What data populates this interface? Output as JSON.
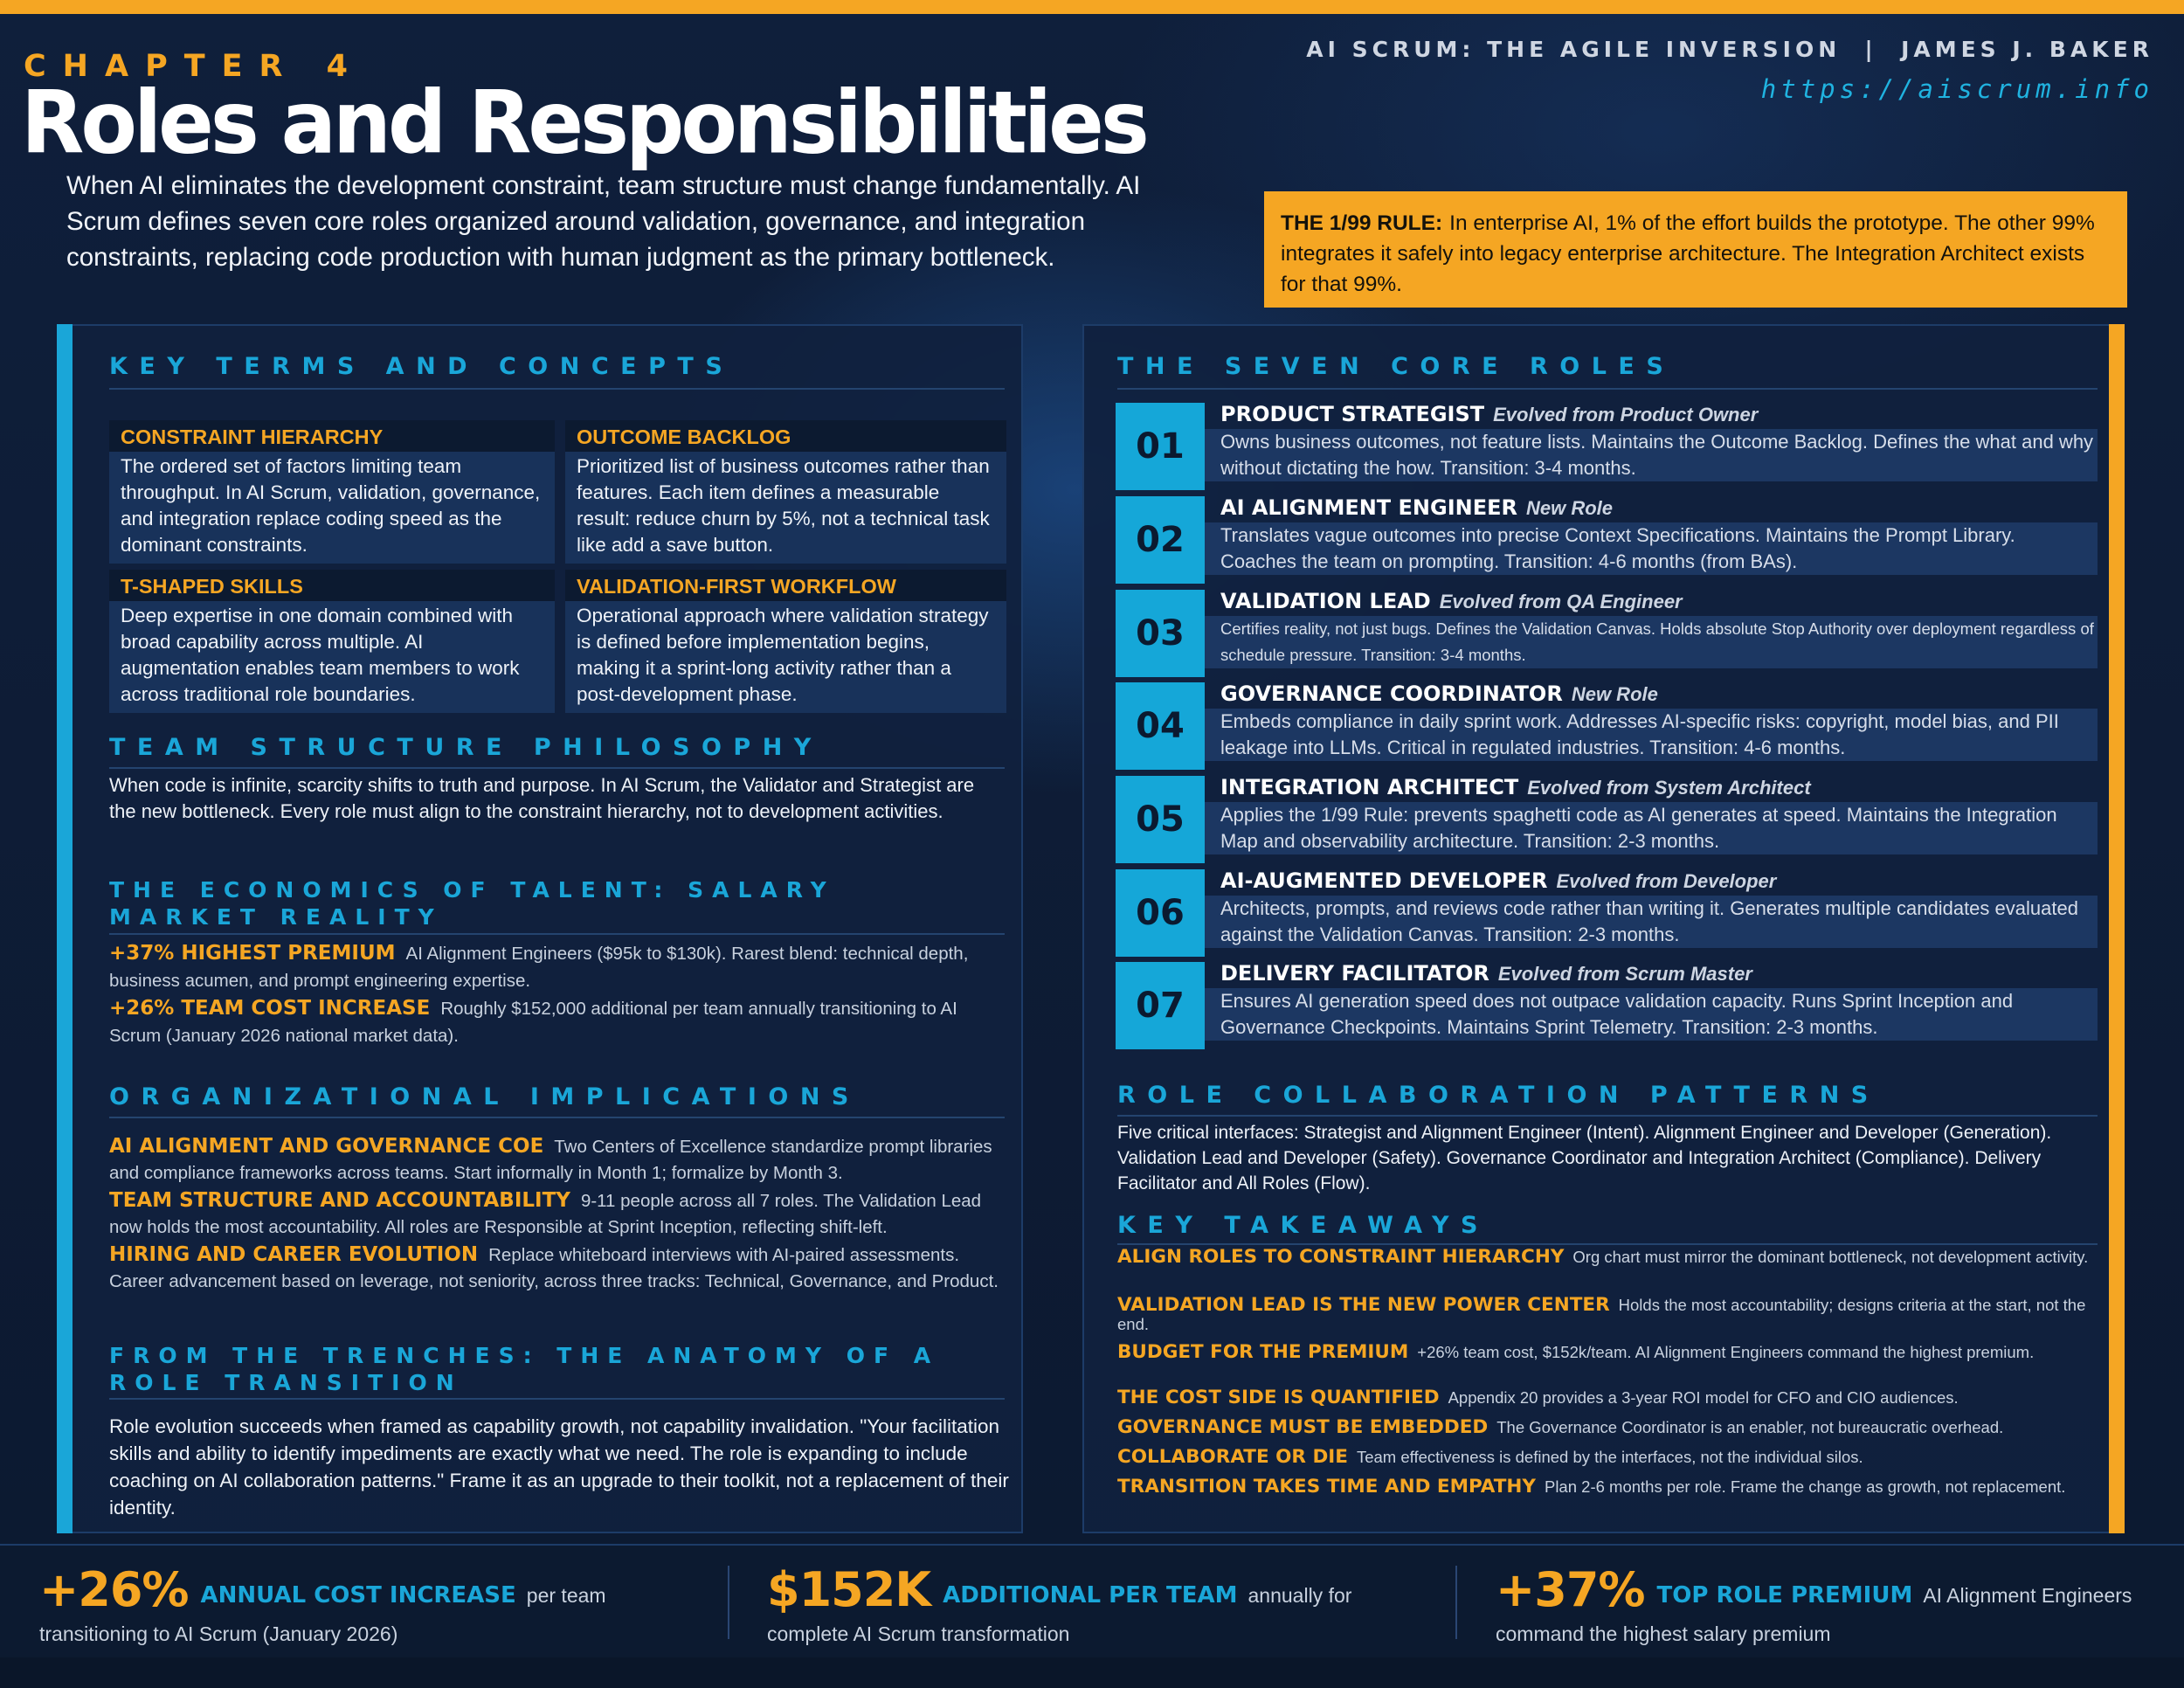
{
  "header": {
    "chapter": "CHAPTER 4",
    "title": "Roles and Responsibilities",
    "book": "AI SCRUM: THE AGILE INVERSION  |  JAMES J. BAKER",
    "url": "https://aiscrum.info"
  },
  "intro": "When AI eliminates the development constraint, team structure must change fundamentally. AI Scrum defines seven core roles organized around validation, governance, and integration constraints, replacing code production with human judgment as the primary bottleneck.",
  "rule": {
    "label": "THE 1/99 RULE:",
    "text": "In enterprise AI, 1% of the effort builds the prototype. The other 99% integrates it safely into legacy enterprise architecture. The Integration Architect exists for that 99%."
  },
  "left": {
    "key_terms_heading": "KEY TERMS AND CONCEPTS",
    "terms": [
      {
        "title": "CONSTRAINT HIERARCHY",
        "body": "The ordered set of factors limiting team throughput. In AI Scrum, validation, governance, and integration replace coding speed as the dominant constraints."
      },
      {
        "title": "OUTCOME BACKLOG",
        "body": "Prioritized list of business outcomes rather than features. Each item defines a measurable result: reduce churn by 5%, not a technical task like add a save button."
      },
      {
        "title": "T-SHAPED SKILLS",
        "body": "Deep expertise in one domain combined with broad capability across multiple. AI augmentation enables team members to work across traditional role boundaries."
      },
      {
        "title": "VALIDATION-FIRST WORKFLOW",
        "body": "Operational approach where validation strategy is defined before implementation begins, making it a sprint-long activity rather than a post-development phase."
      }
    ],
    "philosophy_heading": "TEAM STRUCTURE PHILOSOPHY",
    "philosophy": "When code is infinite, scarcity shifts to truth and purpose. In AI Scrum, the Validator and Strategist are the new bottleneck. Every role must align to the constraint hierarchy, not to development activities.",
    "economics_heading": "THE ECONOMICS OF TALENT: SALARY MARKET REALITY",
    "economics": [
      {
        "label": "+37% HIGHEST PREMIUM",
        "text": "AI Alignment Engineers ($95k to $130k). Rarest blend: technical depth, business acumen, and prompt engineering expertise."
      },
      {
        "label": "+26% TEAM COST INCREASE",
        "text": "Roughly $152,000 additional per team annually transitioning to AI Scrum (January 2026 national market data)."
      }
    ],
    "org_heading": "ORGANIZATIONAL IMPLICATIONS",
    "org": [
      {
        "label": "AI ALIGNMENT AND GOVERNANCE COE",
        "text": "Two Centers of Excellence standardize prompt libraries and compliance frameworks across teams. Start informally in Month 1; formalize by Month 3."
      },
      {
        "label": "TEAM STRUCTURE AND ACCOUNTABILITY",
        "text": "9-11 people across all 7 roles. The Validation Lead now holds the most accountability. All roles are Responsible at Sprint Inception, reflecting shift-left."
      },
      {
        "label": "HIRING AND CAREER EVOLUTION",
        "text": "Replace whiteboard interviews with AI-paired assessments. Career advancement based on leverage, not seniority, across three tracks: Technical, Governance, and Product."
      }
    ],
    "trenches_heading": "FROM THE TRENCHES: THE ANATOMY OF A ROLE TRANSITION",
    "trenches": "Role evolution succeeds when framed as capability growth, not capability invalidation. \"Your facilitation skills and ability to identify impediments are exactly what we need. The role is expanding to include coaching on AI collaboration patterns.\" Frame it as an upgrade to their toolkit, not a replacement of their identity."
  },
  "right": {
    "roles_heading": "THE SEVEN CORE ROLES",
    "roles": [
      {
        "num": "01",
        "name": "PRODUCT STRATEGIST",
        "origin": "Evolved from Product Owner",
        "desc": "Owns business outcomes, not feature lists. Maintains the Outcome Backlog. Defines the what and why without dictating the how. Transition: 3-4 months."
      },
      {
        "num": "02",
        "name": "AI ALIGNMENT ENGINEER",
        "origin": "New Role",
        "desc": "Translates vague outcomes into precise Context Specifications. Maintains the Prompt Library. Coaches the team on prompting. Transition: 4-6 months (from BAs)."
      },
      {
        "num": "03",
        "name": "VALIDATION LEAD",
        "origin": "Evolved from QA Engineer",
        "desc": "Certifies reality, not just bugs. Defines the Validation Canvas. Holds absolute Stop Authority over deployment regardless of schedule pressure. Transition: 3-4 months."
      },
      {
        "num": "04",
        "name": "GOVERNANCE COORDINATOR",
        "origin": "New Role",
        "desc": "Embeds compliance in daily sprint work. Addresses AI-specific risks: copyright, model bias, and PII leakage into LLMs. Critical in regulated industries. Transition: 4-6 months."
      },
      {
        "num": "05",
        "name": "INTEGRATION ARCHITECT",
        "origin": "Evolved from System Architect",
        "desc": "Applies the 1/99 Rule: prevents spaghetti code as AI generates at speed. Maintains the Integration Map and observability architecture. Transition: 2-3 months."
      },
      {
        "num": "06",
        "name": "AI-AUGMENTED DEVELOPER",
        "origin": "Evolved from Developer",
        "desc": "Architects, prompts, and reviews code rather than writing it. Generates multiple candidates evaluated against the Validation Canvas. Transition: 2-3 months."
      },
      {
        "num": "07",
        "name": "DELIVERY FACILITATOR",
        "origin": "Evolved from Scrum Master",
        "desc": "Ensures AI generation speed does not outpace validation capacity. Runs Sprint Inception and Governance Checkpoints. Maintains Sprint Telemetry. Transition: 2-3 months."
      }
    ],
    "collab_heading": "ROLE COLLABORATION PATTERNS",
    "collab": "Five critical interfaces: Strategist and Alignment Engineer (Intent). Alignment Engineer and Developer (Generation). Validation Lead and Developer (Safety). Governance Coordinator and Integration Architect (Compliance). Delivery Facilitator and All Roles (Flow).",
    "takeaways_heading": "KEY TAKEAWAYS",
    "takeaways": [
      {
        "label": "ALIGN ROLES TO CONSTRAINT HIERARCHY",
        "text": "Org chart must mirror the dominant bottleneck, not development activity."
      },
      {
        "label": "VALIDATION LEAD IS THE NEW POWER CENTER",
        "text": "Holds the most accountability; designs criteria at the start, not the end."
      },
      {
        "label": "BUDGET FOR THE PREMIUM",
        "text": "+26% team cost, $152k/team. AI Alignment Engineers command the highest premium."
      },
      {
        "label": "THE COST SIDE IS QUANTIFIED",
        "text": "Appendix 20 provides a 3-year ROI model for CFO and CIO audiences."
      },
      {
        "label": "GOVERNANCE MUST BE EMBEDDED",
        "text": "The Governance Coordinator is an enabler, not bureaucratic overhead."
      },
      {
        "label": "COLLABORATE OR DIE",
        "text": "Team effectiveness is defined by the interfaces, not the individual silos."
      },
      {
        "label": "TRANSITION TAKES TIME AND EMPATHY",
        "text": "Plan 2-6 months per role. Frame the change as growth, not replacement."
      }
    ]
  },
  "stats": [
    {
      "value": "+26%",
      "label": "ANNUAL COST INCREASE",
      "text": "per team",
      "line2": "transitioning to AI Scrum (January 2026)"
    },
    {
      "value": "$152K",
      "label": "ADDITIONAL PER TEAM",
      "text": "annually for",
      "line2": "complete AI Scrum transformation"
    },
    {
      "value": "+37%",
      "label": "TOP ROLE PREMIUM",
      "text": "AI Alignment Engineers",
      "line2": "command the highest salary premium"
    }
  ],
  "colors": {
    "accent_orange": "#f5a623",
    "accent_cyan": "#1aa6d8",
    "background": "#0d1b33"
  }
}
